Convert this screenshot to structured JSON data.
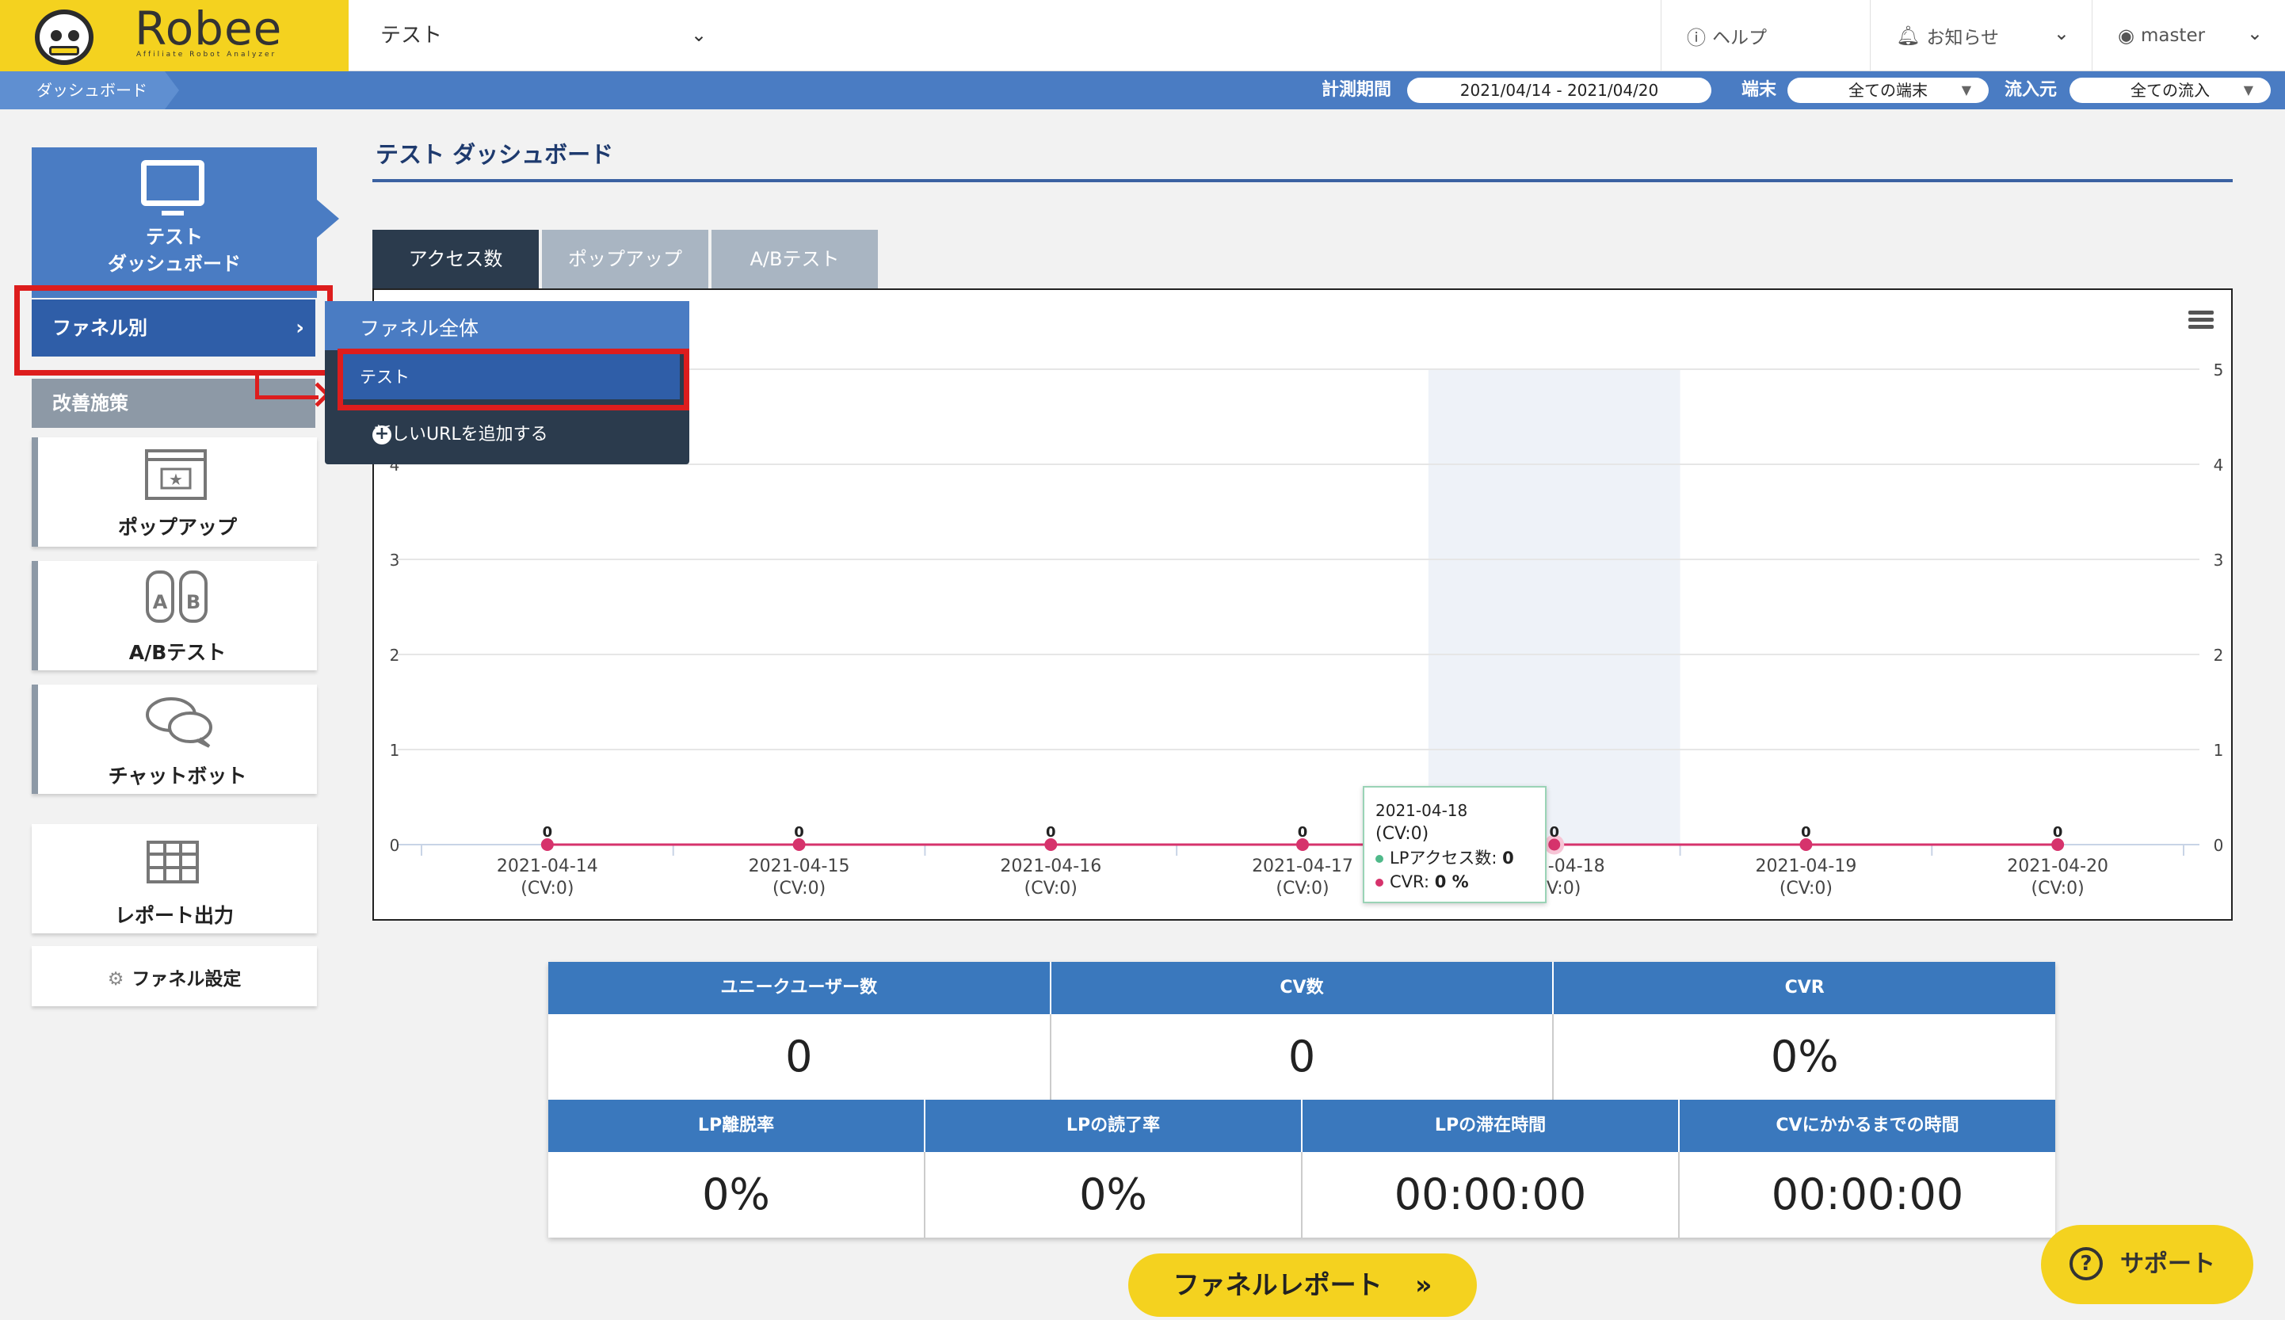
{
  "header": {
    "logo_text": "Robee",
    "logo_sub": "Affiliate Robot Analyzer",
    "project": "テスト",
    "help": "ヘルプ",
    "notice": "お知らせ",
    "user": "master"
  },
  "subbar": {
    "breadcrumb": "ダッシュボード",
    "period_label": "計測期間",
    "period_value": "2021/04/14 - 2021/04/20",
    "device_label": "端末",
    "device_value": "全ての端末",
    "source_label": "流入元",
    "source_value": "全ての流入"
  },
  "sidebar": {
    "dashboard_line1": "テスト",
    "dashboard_line2": "ダッシュボード",
    "funnel": "ファネル別",
    "improve": "改善施策",
    "popup": "ポップアップ",
    "abtest": "A/Bテスト",
    "chatbot": "チャットボット",
    "report": "レポート出力",
    "funnel_setting": "ファネル設定"
  },
  "dropdown": {
    "all": "ファネル全体",
    "selected": "テスト",
    "add": "新しいURLを追加する"
  },
  "main": {
    "title": "テスト ダッシュボード",
    "tabs": [
      "アクセス数",
      "ポップアップ",
      "A/Bテスト"
    ]
  },
  "chart_data": {
    "type": "line",
    "x": [
      "2021-04-14",
      "2021-04-15",
      "2021-04-16",
      "2021-04-17",
      "2021-04-18",
      "2021-04-19",
      "2021-04-20"
    ],
    "x_sublabels": [
      "(CV:0)",
      "(CV:0)",
      "(CV:0)",
      "(CV:0)",
      "(CV:0)",
      "(CV:0)",
      "(CV:0)"
    ],
    "series": [
      {
        "name": "LPアクセス数",
        "values": [
          0,
          0,
          0,
          0,
          0,
          0,
          0
        ],
        "color": "#50b98a"
      },
      {
        "name": "CVR",
        "values": [
          0,
          0,
          0,
          0,
          0,
          0,
          0
        ],
        "color": "#d6336c"
      }
    ],
    "point_labels": [
      "0",
      "0",
      "0",
      "0",
      "0",
      "0",
      "0"
    ],
    "y_ticks": [
      0,
      1,
      2,
      3,
      4,
      5
    ],
    "ylim": [
      0,
      5
    ],
    "highlight_index": 4
  },
  "tooltip": {
    "date": "2021-04-18",
    "cv": "(CV:0)",
    "row1_label": "LPアクセス数:",
    "row1_value": "0",
    "row2_label": "CVR:",
    "row2_value": "0 %"
  },
  "stats": {
    "row1": [
      {
        "label": "ユニークユーザー数",
        "value": "0"
      },
      {
        "label": "CV数",
        "value": "0"
      },
      {
        "label": "CVR",
        "value": "0%"
      }
    ],
    "row2": [
      {
        "label": "LP離脱率",
        "value": "0%"
      },
      {
        "label": "LPの読了率",
        "value": "0%"
      },
      {
        "label": "LPの滞在時間",
        "value": "00:00:00"
      },
      {
        "label": "CVにかかるまでの時間",
        "value": "00:00:00"
      }
    ]
  },
  "buttons": {
    "funnel_report": "ファネルレポート",
    "funnel_report_arrow": "»",
    "support": "サポート"
  },
  "colors": {
    "brand_yellow": "#f4d21f",
    "nav_blue": "#4a7cc3",
    "dark_blue": "#2f5ea8",
    "highlight_red": "#dd1d1d"
  }
}
